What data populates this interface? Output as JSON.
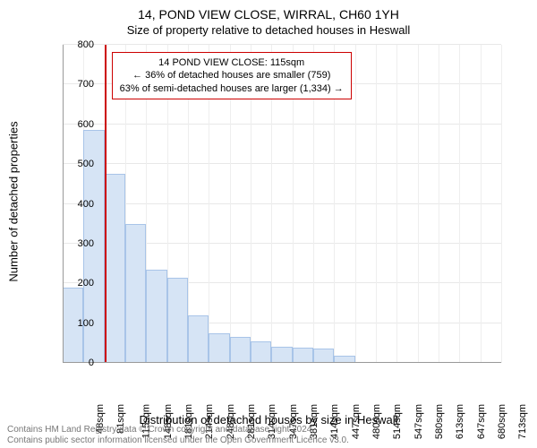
{
  "title_line1": "14, POND VIEW CLOSE, WIRRAL, CH60 1YH",
  "title_line2": "Size of property relative to detached houses in Heswall",
  "ylabel": "Number of detached properties",
  "xlabel": "Distribution of detached houses by size in Heswall",
  "chart": {
    "type": "histogram",
    "categories": [
      "48sqm",
      "81sqm",
      "115sqm",
      "148sqm",
      "181sqm",
      "214sqm",
      "248sqm",
      "281sqm",
      "314sqm",
      "347sqm",
      "381sqm",
      "414sqm",
      "447sqm",
      "480sqm",
      "514sqm",
      "547sqm",
      "580sqm",
      "613sqm",
      "647sqm",
      "680sqm",
      "713sqm"
    ],
    "values": [
      190,
      585,
      475,
      350,
      235,
      215,
      120,
      75,
      65,
      55,
      40,
      38,
      35,
      18,
      0,
      0,
      0,
      0,
      0,
      0,
      0
    ],
    "ylim": [
      0,
      800
    ],
    "ytick_step": 100,
    "bar_fill": "#d6e4f5",
    "bar_border": "#a8c4e8",
    "grid_color": "#e8e8e8",
    "vgrid_color": "#eeeeee",
    "axis_color": "#999999",
    "marker_color": "#cc0000",
    "marker_index": 2
  },
  "annotation": {
    "line1": "14 POND VIEW CLOSE: 115sqm",
    "line2": "← 36% of detached houses are smaller (759)",
    "line3": "63% of semi-detached houses are larger (1,334) →",
    "border_color": "#cc0000"
  },
  "footer_line1": "Contains HM Land Registry data © Crown copyright and database right 2024.",
  "footer_line2": "Contains public sector information licensed under the Open Government Licence v3.0."
}
